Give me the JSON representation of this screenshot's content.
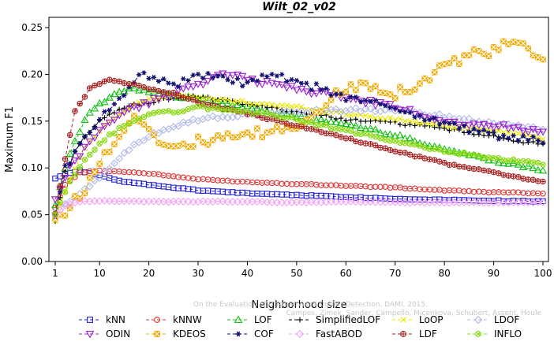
{
  "chart_data": {
    "type": "line",
    "title": "Wilt_02_v02",
    "xlabel": "Neighborhood size",
    "ylabel": "Maximum F1",
    "xlim": [
      1,
      100
    ],
    "ylim": [
      0,
      0.25
    ],
    "x_ticks": [
      1,
      10,
      20,
      30,
      40,
      50,
      60,
      70,
      80,
      90,
      100
    ],
    "y_ticks": [
      "0.00",
      "0.05",
      "0.10",
      "0.15",
      "0.20",
      "0.25"
    ],
    "grid": false,
    "legend_position": "bottom",
    "watermark": "Campos, Zimek, Sander, Campello, Micenkova, Schubert, Assent, Houle\nOn the Evaluation of Unsupervised Outlier Detection. DAMI, 2015.",
    "series": [
      {
        "name": "kNN",
        "color": "#1f1fd8",
        "marker": "square",
        "keys": [
          [
            1,
            0.089
          ],
          [
            3,
            0.094
          ],
          [
            6,
            0.097
          ],
          [
            10,
            0.092
          ],
          [
            15,
            0.085
          ],
          [
            20,
            0.082
          ],
          [
            30,
            0.076
          ],
          [
            40,
            0.073
          ],
          [
            50,
            0.071
          ],
          [
            60,
            0.069
          ],
          [
            70,
            0.067
          ],
          [
            80,
            0.066
          ],
          [
            90,
            0.065
          ],
          [
            100,
            0.064
          ]
        ]
      },
      {
        "name": "kNNW",
        "color": "#e03030",
        "marker": "circle",
        "keys": [
          [
            1,
            0.057
          ],
          [
            3,
            0.082
          ],
          [
            6,
            0.095
          ],
          [
            10,
            0.097
          ],
          [
            15,
            0.096
          ],
          [
            20,
            0.094
          ],
          [
            30,
            0.088
          ],
          [
            40,
            0.085
          ],
          [
            50,
            0.083
          ],
          [
            60,
            0.081
          ],
          [
            70,
            0.079
          ],
          [
            80,
            0.076
          ],
          [
            90,
            0.074
          ],
          [
            100,
            0.073
          ]
        ]
      },
      {
        "name": "LOF",
        "color": "#10c010",
        "marker": "triangle",
        "keys": [
          [
            1,
            0.06
          ],
          [
            3,
            0.1
          ],
          [
            5,
            0.13
          ],
          [
            8,
            0.16
          ],
          [
            12,
            0.175
          ],
          [
            16,
            0.185
          ],
          [
            22,
            0.18
          ],
          [
            26,
            0.175
          ],
          [
            30,
            0.175
          ],
          [
            40,
            0.165
          ],
          [
            50,
            0.155
          ],
          [
            60,
            0.147
          ],
          [
            70,
            0.135
          ],
          [
            80,
            0.12
          ],
          [
            90,
            0.108
          ],
          [
            100,
            0.098
          ]
        ]
      },
      {
        "name": "SimplifiedLOF",
        "color": "#000000",
        "marker": "plus",
        "keys": [
          [
            1,
            0.043
          ],
          [
            3,
            0.095
          ],
          [
            6,
            0.127
          ],
          [
            10,
            0.15
          ],
          [
            15,
            0.165
          ],
          [
            20,
            0.17
          ],
          [
            25,
            0.175
          ],
          [
            30,
            0.176
          ],
          [
            35,
            0.172
          ],
          [
            40,
            0.168
          ],
          [
            50,
            0.16
          ],
          [
            60,
            0.152
          ],
          [
            70,
            0.148
          ],
          [
            80,
            0.142
          ],
          [
            90,
            0.133
          ],
          [
            100,
            0.125
          ]
        ]
      },
      {
        "name": "LoOP",
        "color": "#e8e800",
        "marker": "x",
        "keys": [
          [
            1,
            0.044
          ],
          [
            4,
            0.09
          ],
          [
            8,
            0.13
          ],
          [
            12,
            0.15
          ],
          [
            18,
            0.17
          ],
          [
            24,
            0.178
          ],
          [
            30,
            0.175
          ],
          [
            40,
            0.17
          ],
          [
            50,
            0.165
          ],
          [
            60,
            0.158
          ],
          [
            70,
            0.152
          ],
          [
            80,
            0.145
          ],
          [
            90,
            0.14
          ],
          [
            100,
            0.132
          ]
        ]
      },
      {
        "name": "LDOF",
        "color": "#b0b8e8",
        "marker": "diamond",
        "keys": [
          [
            1,
            0.05
          ],
          [
            5,
            0.07
          ],
          [
            10,
            0.09
          ],
          [
            15,
            0.115
          ],
          [
            20,
            0.135
          ],
          [
            25,
            0.145
          ],
          [
            30,
            0.152
          ],
          [
            40,
            0.157
          ],
          [
            50,
            0.16
          ],
          [
            60,
            0.162
          ],
          [
            70,
            0.162
          ],
          [
            80,
            0.155
          ],
          [
            90,
            0.148
          ],
          [
            100,
            0.142
          ]
        ]
      },
      {
        "name": "ODIN",
        "color": "#9a20d0",
        "marker": "triangle-down",
        "keys": [
          [
            1,
            0.065
          ],
          [
            4,
            0.1
          ],
          [
            8,
            0.128
          ],
          [
            12,
            0.15
          ],
          [
            16,
            0.162
          ],
          [
            20,
            0.17
          ],
          [
            25,
            0.18
          ],
          [
            30,
            0.19
          ],
          [
            35,
            0.2
          ],
          [
            40,
            0.195
          ],
          [
            45,
            0.19
          ],
          [
            50,
            0.185
          ],
          [
            55,
            0.18
          ],
          [
            60,
            0.175
          ],
          [
            65,
            0.17
          ],
          [
            70,
            0.165
          ],
          [
            80,
            0.15
          ],
          [
            90,
            0.145
          ],
          [
            100,
            0.14
          ]
        ]
      },
      {
        "name": "KDEOS",
        "color": "#eea800",
        "marker": "square-x",
        "keys": [
          [
            1,
            0.045
          ],
          [
            4,
            0.058
          ],
          [
            8,
            0.085
          ],
          [
            11,
            0.115
          ],
          [
            15,
            0.145
          ],
          [
            18,
            0.155
          ],
          [
            22,
            0.13
          ],
          [
            26,
            0.125
          ],
          [
            30,
            0.128
          ],
          [
            35,
            0.13
          ],
          [
            40,
            0.135
          ],
          [
            45,
            0.138
          ],
          [
            50,
            0.145
          ],
          [
            55,
            0.165
          ],
          [
            60,
            0.185
          ],
          [
            65,
            0.19
          ],
          [
            70,
            0.18
          ],
          [
            75,
            0.19
          ],
          [
            80,
            0.21
          ],
          [
            85,
            0.22
          ],
          [
            90,
            0.225
          ],
          [
            94,
            0.235
          ],
          [
            98,
            0.22
          ],
          [
            100,
            0.218
          ]
        ]
      },
      {
        "name": "COF",
        "color": "#101070",
        "marker": "asterisk",
        "keys": [
          [
            1,
            0.048
          ],
          [
            3,
            0.1
          ],
          [
            6,
            0.125
          ],
          [
            10,
            0.15
          ],
          [
            14,
            0.175
          ],
          [
            18,
            0.2
          ],
          [
            22,
            0.195
          ],
          [
            26,
            0.19
          ],
          [
            30,
            0.2
          ],
          [
            35,
            0.195
          ],
          [
            40,
            0.19
          ],
          [
            45,
            0.2
          ],
          [
            50,
            0.19
          ],
          [
            55,
            0.185
          ],
          [
            60,
            0.175
          ],
          [
            65,
            0.17
          ],
          [
            70,
            0.165
          ],
          [
            75,
            0.155
          ],
          [
            80,
            0.148
          ],
          [
            90,
            0.135
          ],
          [
            100,
            0.128
          ]
        ]
      },
      {
        "name": "FastABOD",
        "color": "#f4a0f4",
        "marker": "diamond",
        "keys": [
          [
            1,
            0.05
          ],
          [
            3,
            0.06
          ],
          [
            6,
            0.064
          ],
          [
            10,
            0.065
          ],
          [
            20,
            0.064
          ],
          [
            30,
            0.064
          ],
          [
            40,
            0.064
          ],
          [
            50,
            0.063
          ],
          [
            60,
            0.064
          ],
          [
            70,
            0.063
          ],
          [
            80,
            0.063
          ],
          [
            90,
            0.063
          ],
          [
            100,
            0.063
          ]
        ]
      },
      {
        "name": "LDF",
        "color": "#a82020",
        "marker": "circle-plus",
        "keys": [
          [
            1,
            0.052
          ],
          [
            3,
            0.11
          ],
          [
            5,
            0.16
          ],
          [
            8,
            0.185
          ],
          [
            12,
            0.195
          ],
          [
            16,
            0.19
          ],
          [
            20,
            0.185
          ],
          [
            25,
            0.18
          ],
          [
            30,
            0.17
          ],
          [
            40,
            0.158
          ],
          [
            50,
            0.145
          ],
          [
            60,
            0.132
          ],
          [
            70,
            0.118
          ],
          [
            80,
            0.105
          ],
          [
            90,
            0.095
          ],
          [
            100,
            0.085
          ]
        ]
      },
      {
        "name": "INFLO",
        "color": "#88d810",
        "marker": "circle-x",
        "keys": [
          [
            1,
            0.05
          ],
          [
            4,
            0.085
          ],
          [
            8,
            0.115
          ],
          [
            12,
            0.135
          ],
          [
            16,
            0.148
          ],
          [
            20,
            0.158
          ],
          [
            25,
            0.16
          ],
          [
            30,
            0.165
          ],
          [
            40,
            0.16
          ],
          [
            50,
            0.152
          ],
          [
            60,
            0.14
          ],
          [
            70,
            0.128
          ],
          [
            80,
            0.118
          ],
          [
            90,
            0.11
          ],
          [
            100,
            0.104
          ]
        ]
      }
    ]
  }
}
